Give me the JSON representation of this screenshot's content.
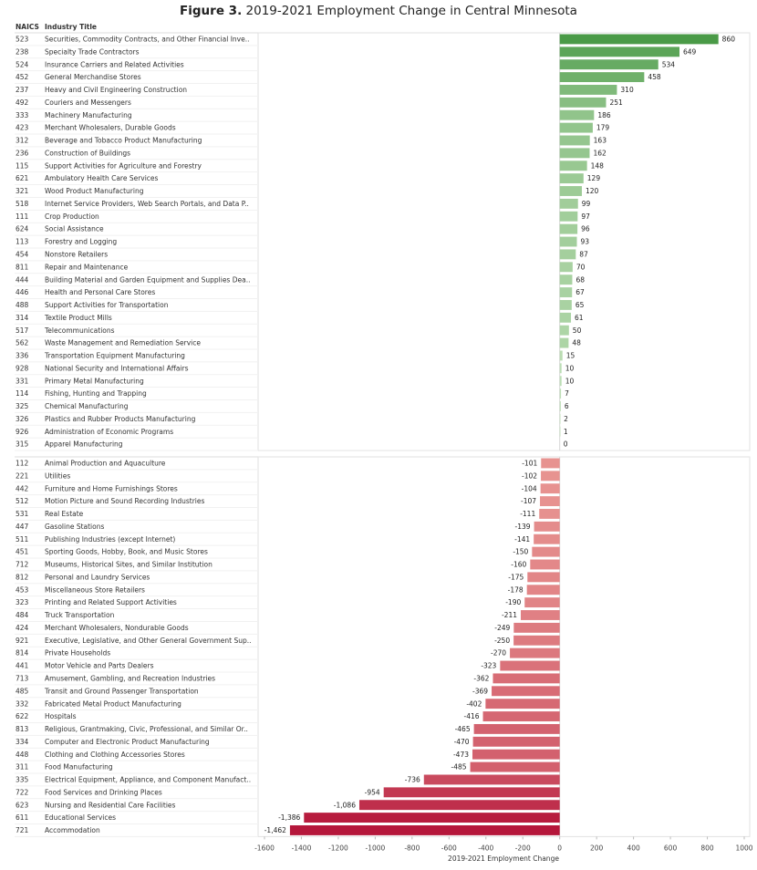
{
  "title": {
    "prefix": "Figure 3.",
    "text": "2019-2021 Employment Change in Central Minnesota"
  },
  "column_headers": {
    "naics": "NAICS",
    "industry": "Industry Title"
  },
  "chart_data": {
    "type": "bar",
    "orientation": "horizontal",
    "title": "2019-2021 Employment Change in Central Minnesota",
    "xlabel": "2019-2021 Employment Change",
    "xlim": [
      -1600,
      1000
    ],
    "xticks": [
      -1600,
      -1400,
      -1200,
      -1000,
      -800,
      -600,
      -400,
      -200,
      0,
      200,
      400,
      600,
      800,
      1000
    ],
    "grid": false,
    "colors": {
      "positive_max": "#4a9a47",
      "positive_min": "#c7e4bf",
      "negative_min": "#f6b8aa",
      "negative_max": "#b5173b"
    },
    "positive_group": [
      {
        "naics": "523",
        "industry": "Securities, Commodity Contracts, and Other Financial Inve..",
        "value": 860,
        "label": "860"
      },
      {
        "naics": "238",
        "industry": "Specialty Trade Contractors",
        "value": 649,
        "label": "649"
      },
      {
        "naics": "524",
        "industry": "Insurance Carriers and Related Activities",
        "value": 534,
        "label": "534"
      },
      {
        "naics": "452",
        "industry": "General Merchandise Stores",
        "value": 458,
        "label": "458"
      },
      {
        "naics": "237",
        "industry": "Heavy and Civil Engineering Construction",
        "value": 310,
        "label": "310"
      },
      {
        "naics": "492",
        "industry": "Couriers and Messengers",
        "value": 251,
        "label": "251"
      },
      {
        "naics": "333",
        "industry": "Machinery Manufacturing",
        "value": 186,
        "label": "186"
      },
      {
        "naics": "423",
        "industry": "Merchant Wholesalers, Durable Goods",
        "value": 179,
        "label": "179"
      },
      {
        "naics": "312",
        "industry": "Beverage and Tobacco Product Manufacturing",
        "value": 163,
        "label": "163"
      },
      {
        "naics": "236",
        "industry": "Construction of Buildings",
        "value": 162,
        "label": "162"
      },
      {
        "naics": "115",
        "industry": "Support Activities for Agriculture and Forestry",
        "value": 148,
        "label": "148"
      },
      {
        "naics": "621",
        "industry": "Ambulatory Health Care Services",
        "value": 129,
        "label": "129"
      },
      {
        "naics": "321",
        "industry": "Wood Product Manufacturing",
        "value": 120,
        "label": "120"
      },
      {
        "naics": "518",
        "industry": "Internet Service Providers, Web Search Portals, and Data P..",
        "value": 99,
        "label": "99"
      },
      {
        "naics": "111",
        "industry": "Crop Production",
        "value": 97,
        "label": "97"
      },
      {
        "naics": "624",
        "industry": "Social Assistance",
        "value": 96,
        "label": "96"
      },
      {
        "naics": "113",
        "industry": "Forestry and Logging",
        "value": 93,
        "label": "93"
      },
      {
        "naics": "454",
        "industry": "Nonstore Retailers",
        "value": 87,
        "label": "87"
      },
      {
        "naics": "811",
        "industry": "Repair and Maintenance",
        "value": 70,
        "label": "70"
      },
      {
        "naics": "444",
        "industry": "Building Material and Garden Equipment and Supplies Dea..",
        "value": 68,
        "label": "68"
      },
      {
        "naics": "446",
        "industry": "Health and Personal Care Stores",
        "value": 67,
        "label": "67"
      },
      {
        "naics": "488",
        "industry": "Support Activities for Transportation",
        "value": 65,
        "label": "65"
      },
      {
        "naics": "314",
        "industry": "Textile Product Mills",
        "value": 61,
        "label": "61"
      },
      {
        "naics": "517",
        "industry": "Telecommunications",
        "value": 50,
        "label": "50"
      },
      {
        "naics": "562",
        "industry": "Waste Management and Remediation Service",
        "value": 48,
        "label": "48"
      },
      {
        "naics": "336",
        "industry": "Transportation Equipment Manufacturing",
        "value": 15,
        "label": "15"
      },
      {
        "naics": "928",
        "industry": "National Security and International Affairs",
        "value": 10,
        "label": "10"
      },
      {
        "naics": "331",
        "industry": "Primary Metal Manufacturing",
        "value": 10,
        "label": "10"
      },
      {
        "naics": "114",
        "industry": "Fishing, Hunting and Trapping",
        "value": 7,
        "label": "7"
      },
      {
        "naics": "325",
        "industry": "Chemical Manufacturing",
        "value": 6,
        "label": "6"
      },
      {
        "naics": "326",
        "industry": "Plastics and Rubber Products Manufacturing",
        "value": 2,
        "label": "2"
      },
      {
        "naics": "926",
        "industry": "Administration of Economic Programs",
        "value": 1,
        "label": "1"
      },
      {
        "naics": "315",
        "industry": "Apparel Manufacturing",
        "value": 0,
        "label": "0"
      }
    ],
    "negative_group": [
      {
        "naics": "112",
        "industry": "Animal Production and Aquaculture",
        "value": -101,
        "label": "-101"
      },
      {
        "naics": "221",
        "industry": "Utilities",
        "value": -102,
        "label": "-102"
      },
      {
        "naics": "442",
        "industry": "Furniture and Home Furnishings Stores",
        "value": -104,
        "label": "-104"
      },
      {
        "naics": "512",
        "industry": "Motion Picture and Sound Recording Industries",
        "value": -107,
        "label": "-107"
      },
      {
        "naics": "531",
        "industry": "Real Estate",
        "value": -111,
        "label": "-111"
      },
      {
        "naics": "447",
        "industry": "Gasoline Stations",
        "value": -139,
        "label": "-139"
      },
      {
        "naics": "511",
        "industry": "Publishing Industries (except Internet)",
        "value": -141,
        "label": "-141"
      },
      {
        "naics": "451",
        "industry": "Sporting Goods, Hobby, Book, and Music Stores",
        "value": -150,
        "label": "-150"
      },
      {
        "naics": "712",
        "industry": "Museums, Historical Sites, and Similar Institution",
        "value": -160,
        "label": "-160"
      },
      {
        "naics": "812",
        "industry": "Personal and Laundry Services",
        "value": -175,
        "label": "-175"
      },
      {
        "naics": "453",
        "industry": "Miscellaneous Store Retailers",
        "value": -178,
        "label": "-178"
      },
      {
        "naics": "323",
        "industry": "Printing and Related Support Activities",
        "value": -190,
        "label": "-190"
      },
      {
        "naics": "484",
        "industry": "Truck Transportation",
        "value": -211,
        "label": "-211"
      },
      {
        "naics": "424",
        "industry": "Merchant Wholesalers, Nondurable Goods",
        "value": -249,
        "label": "-249"
      },
      {
        "naics": "921",
        "industry": "Executive, Legislative, and Other General Government Sup..",
        "value": -250,
        "label": "-250"
      },
      {
        "naics": "814",
        "industry": "Private Households",
        "value": -270,
        "label": "-270"
      },
      {
        "naics": "441",
        "industry": "Motor Vehicle and Parts Dealers",
        "value": -323,
        "label": "-323"
      },
      {
        "naics": "713",
        "industry": "Amusement, Gambling, and Recreation Industries",
        "value": -362,
        "label": "-362"
      },
      {
        "naics": "485",
        "industry": "Transit and Ground Passenger Transportation",
        "value": -369,
        "label": "-369"
      },
      {
        "naics": "332",
        "industry": "Fabricated Metal Product Manufacturing",
        "value": -402,
        "label": "-402"
      },
      {
        "naics": "622",
        "industry": "Hospitals",
        "value": -416,
        "label": "-416"
      },
      {
        "naics": "813",
        "industry": "Religious, Grantmaking, Civic, Professional, and Similar Or..",
        "value": -465,
        "label": "-465"
      },
      {
        "naics": "334",
        "industry": "Computer and Electronic Product Manufacturing",
        "value": -470,
        "label": "-470"
      },
      {
        "naics": "448",
        "industry": "Clothing and Clothing Accessories Stores",
        "value": -473,
        "label": "-473"
      },
      {
        "naics": "311",
        "industry": "Food Manufacturing",
        "value": -485,
        "label": "-485"
      },
      {
        "naics": "335",
        "industry": "Electrical Equipment, Appliance, and Component Manufact..",
        "value": -736,
        "label": "-736"
      },
      {
        "naics": "722",
        "industry": "Food Services and Drinking Places",
        "value": -954,
        "label": "-954"
      },
      {
        "naics": "623",
        "industry": "Nursing and Residential Care Facilities",
        "value": -1086,
        "label": "-1,086"
      },
      {
        "naics": "611",
        "industry": "Educational Services",
        "value": -1386,
        "label": "-1,386"
      },
      {
        "naics": "721",
        "industry": "Accommodation",
        "value": -1462,
        "label": "-1,462"
      }
    ]
  }
}
